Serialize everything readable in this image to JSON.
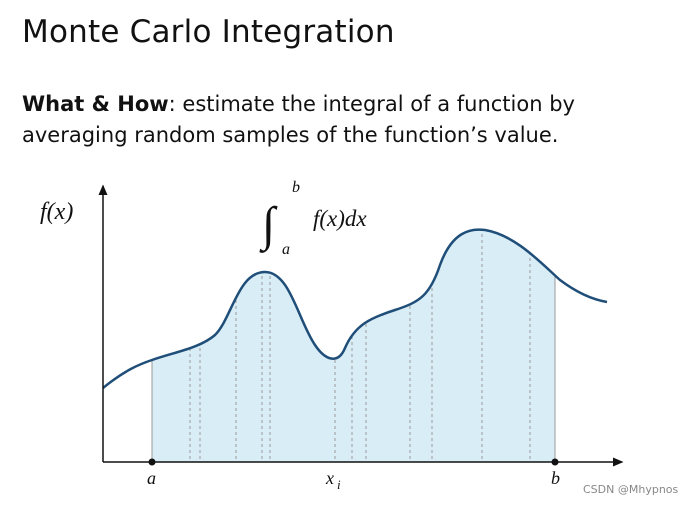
{
  "header": {
    "title": "Monte Carlo Integration"
  },
  "description": {
    "label": "What & How",
    "text": ": estimate the integral of a function by averaging random samples of the function’s value."
  },
  "diagram": {
    "y_axis_label": "f(x)",
    "integral": {
      "symbol": "∫",
      "upper": "b",
      "lower": "a",
      "integrand": "f(x)dx"
    },
    "x_labels": {
      "start": "a",
      "sample": "x",
      "sample_subscript": "i",
      "end": "b"
    }
  },
  "watermark": "CSDN @Mhypnos"
}
